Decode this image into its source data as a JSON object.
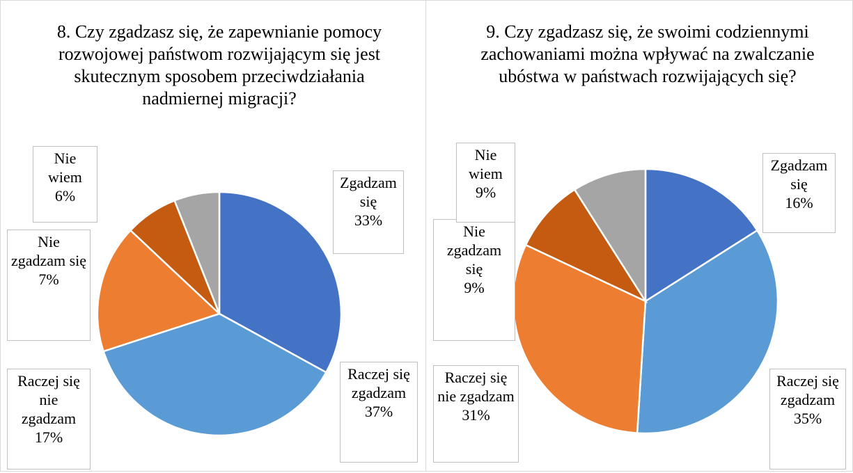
{
  "chart_data": [
    {
      "type": "pie",
      "title": "8. Czy zgadzasz się, że zapewnianie pomocy rozwojowej państwom rozwijającym się jest skutecznym sposobem przeciwdziałania nadmiernej migracji?",
      "categories": [
        "Zgadzam się",
        "Raczej się zgadzam",
        "Raczej się nie zgadzam",
        "Nie zgadzam się",
        "Nie wiem"
      ],
      "values": [
        33,
        37,
        17,
        7,
        6
      ],
      "value_labels": [
        "33%",
        "37%",
        "17%",
        "7%",
        "6%"
      ],
      "colors": [
        "#4472c4",
        "#5b9bd5",
        "#ed7d31",
        "#c55a11",
        "#a5a5a5"
      ]
    },
    {
      "type": "pie",
      "title": "9. Czy zgadzasz się, że swoimi codziennymi zachowaniami można wpływać na zwalczanie ubóstwa w państwach rozwijających się?",
      "categories": [
        "Zgadzam się",
        "Raczej się zgadzam",
        "Raczej się nie zgadzam",
        "Nie zgadzam się",
        "Nie wiem"
      ],
      "values": [
        16,
        35,
        31,
        9,
        9
      ],
      "value_labels": [
        "16%",
        "35%",
        "31%",
        "9%",
        "9%"
      ],
      "colors": [
        "#4472c4",
        "#5b9bd5",
        "#ed7d31",
        "#c55a11",
        "#a5a5a5"
      ]
    }
  ]
}
